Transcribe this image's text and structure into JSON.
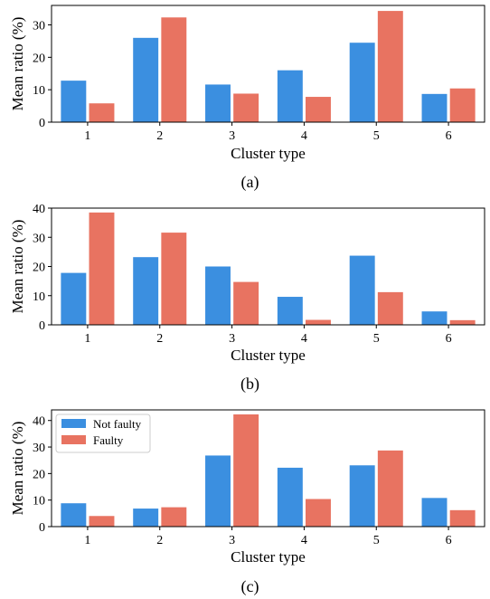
{
  "colors": {
    "not_faulty": "#3b8fe0",
    "faulty": "#e87361"
  },
  "legend": {
    "not_faulty": "Not faulty",
    "faulty": "Faulty"
  },
  "chart_data": [
    {
      "type": "bar",
      "caption": "(a)",
      "categories": [
        "1",
        "2",
        "3",
        "4",
        "5",
        "6"
      ],
      "series": [
        {
          "name": "Not faulty",
          "values": [
            12.8,
            26.0,
            11.6,
            16.0,
            24.5,
            8.7
          ]
        },
        {
          "name": "Faulty",
          "values": [
            5.8,
            32.3,
            8.8,
            7.8,
            34.3,
            10.4
          ]
        }
      ],
      "xlabel": "Cluster type",
      "ylabel": "Mean ratio (%)",
      "ylim": [
        0,
        36
      ],
      "yticks": [
        0,
        10,
        20,
        30
      ],
      "legend": false
    },
    {
      "type": "bar",
      "caption": "(b)",
      "categories": [
        "1",
        "2",
        "3",
        "4",
        "5",
        "6"
      ],
      "series": [
        {
          "name": "Not faulty",
          "values": [
            17.8,
            23.2,
            20.0,
            9.6,
            23.7,
            4.6
          ]
        },
        {
          "name": "Faulty",
          "values": [
            38.5,
            31.6,
            14.7,
            1.7,
            11.2,
            1.6
          ]
        }
      ],
      "xlabel": "Cluster type",
      "ylabel": "Mean ratio (%)",
      "ylim": [
        0,
        40
      ],
      "yticks": [
        0,
        10,
        20,
        30,
        40
      ],
      "legend": false
    },
    {
      "type": "bar",
      "caption": "(c)",
      "categories": [
        "1",
        "2",
        "3",
        "4",
        "5",
        "6"
      ],
      "series": [
        {
          "name": "Not faulty",
          "values": [
            8.8,
            6.8,
            26.8,
            22.2,
            23.1,
            10.8
          ]
        },
        {
          "name": "Faulty",
          "values": [
            4.0,
            7.3,
            42.3,
            10.4,
            28.7,
            6.2
          ]
        }
      ],
      "xlabel": "Cluster type",
      "ylabel": "Mean ratio (%)",
      "ylim": [
        0,
        44
      ],
      "yticks": [
        0,
        10,
        20,
        30,
        40
      ],
      "legend": "top-left"
    }
  ]
}
